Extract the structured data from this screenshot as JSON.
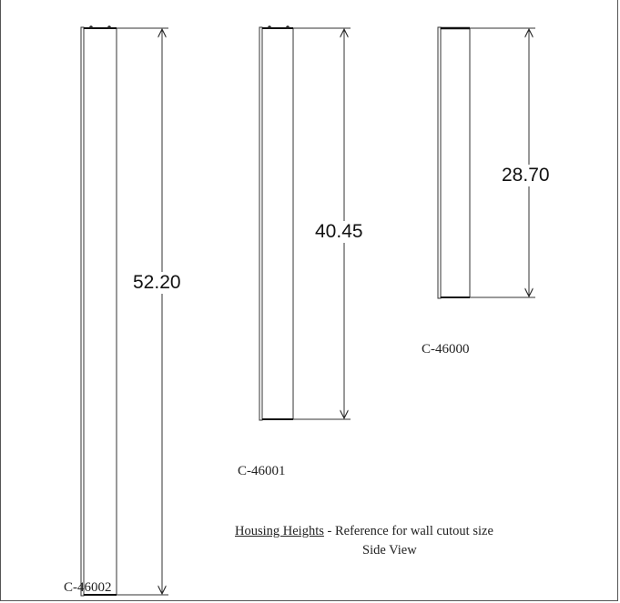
{
  "housings": [
    {
      "model": "C-46002",
      "height": "52.20"
    },
    {
      "model": "C-46001",
      "height": "40.45"
    },
    {
      "model": "C-46000",
      "height": "28.70"
    }
  ],
  "caption": {
    "title": "Housing Heights",
    "separator": " - ",
    "description": "Reference for wall cutout size",
    "view": "Side View"
  }
}
